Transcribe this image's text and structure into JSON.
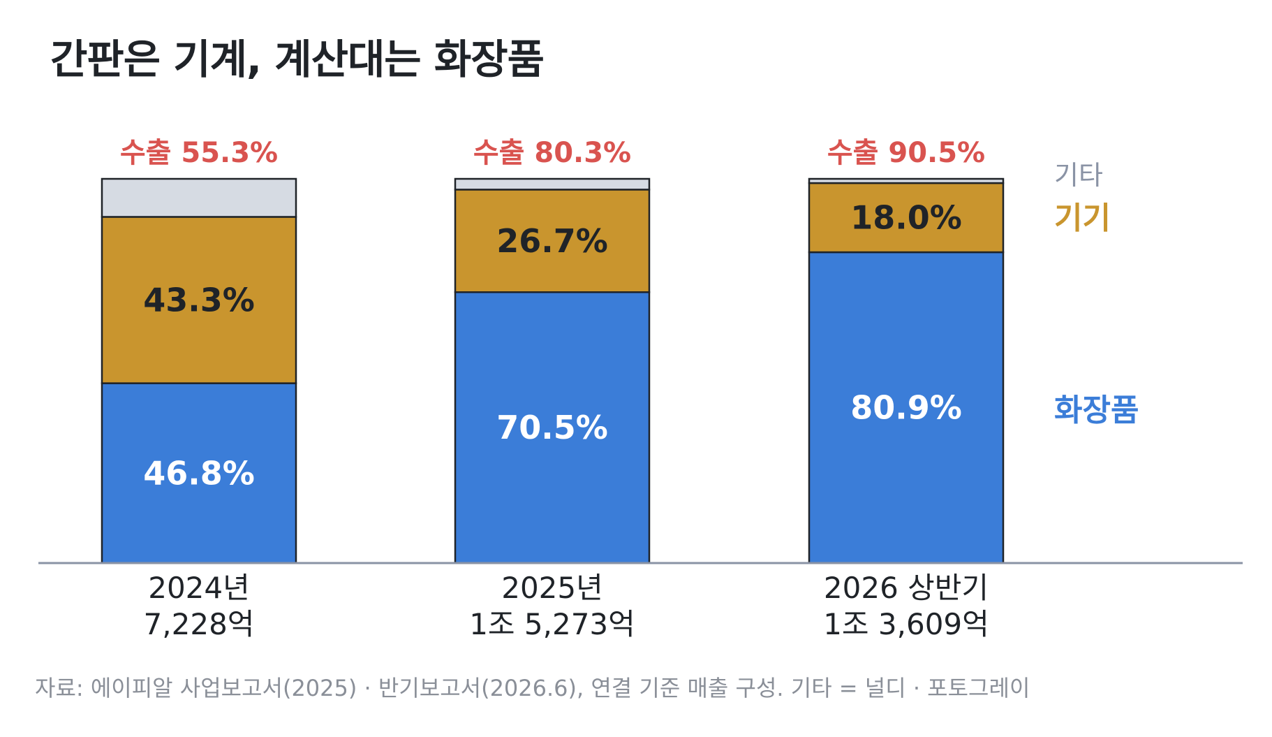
{
  "title": "간판은 기계, 계산대는 화장품",
  "source": "자료: 에이피알 사업보고서(2025) · 반기보고서(2026.6), 연결 기준 매출 구성. 기타 = 널디 · 포토그레이",
  "colors": {
    "cosmetics": "#3b7dd8",
    "device": "#c9952e",
    "other": "#d6dbe3",
    "export": "#d9534f",
    "title": "#1f2328",
    "axis": "#8a93a5"
  },
  "chart_data": {
    "type": "bar",
    "stacked": true,
    "orientation": "vertical",
    "title": "간판은 기계, 계산대는 화장품",
    "categories": [
      {
        "year": "2024년",
        "total": "7,228억"
      },
      {
        "year": "2025년",
        "total": "1조 5,273억"
      },
      {
        "year": "2026 상반기",
        "total": "1조 3,609억"
      }
    ],
    "series": [
      {
        "name": "화장품",
        "values": [
          46.8,
          70.5,
          80.9
        ],
        "labels": [
          "46.8%",
          "70.5%",
          "80.9%"
        ]
      },
      {
        "name": "기기",
        "values": [
          43.3,
          26.7,
          18.0
        ],
        "labels": [
          "43.3%",
          "26.7%",
          "18.0%"
        ]
      },
      {
        "name": "기타",
        "values": [
          9.9,
          2.8,
          1.1
        ],
        "labels": [
          "",
          "",
          ""
        ]
      }
    ],
    "annotations": [
      "수출 55.3%",
      "수출 80.3%",
      "수출 90.5%"
    ],
    "ylim": [
      0,
      100
    ],
    "grid": false,
    "legend": "right, inline next to last bar"
  }
}
